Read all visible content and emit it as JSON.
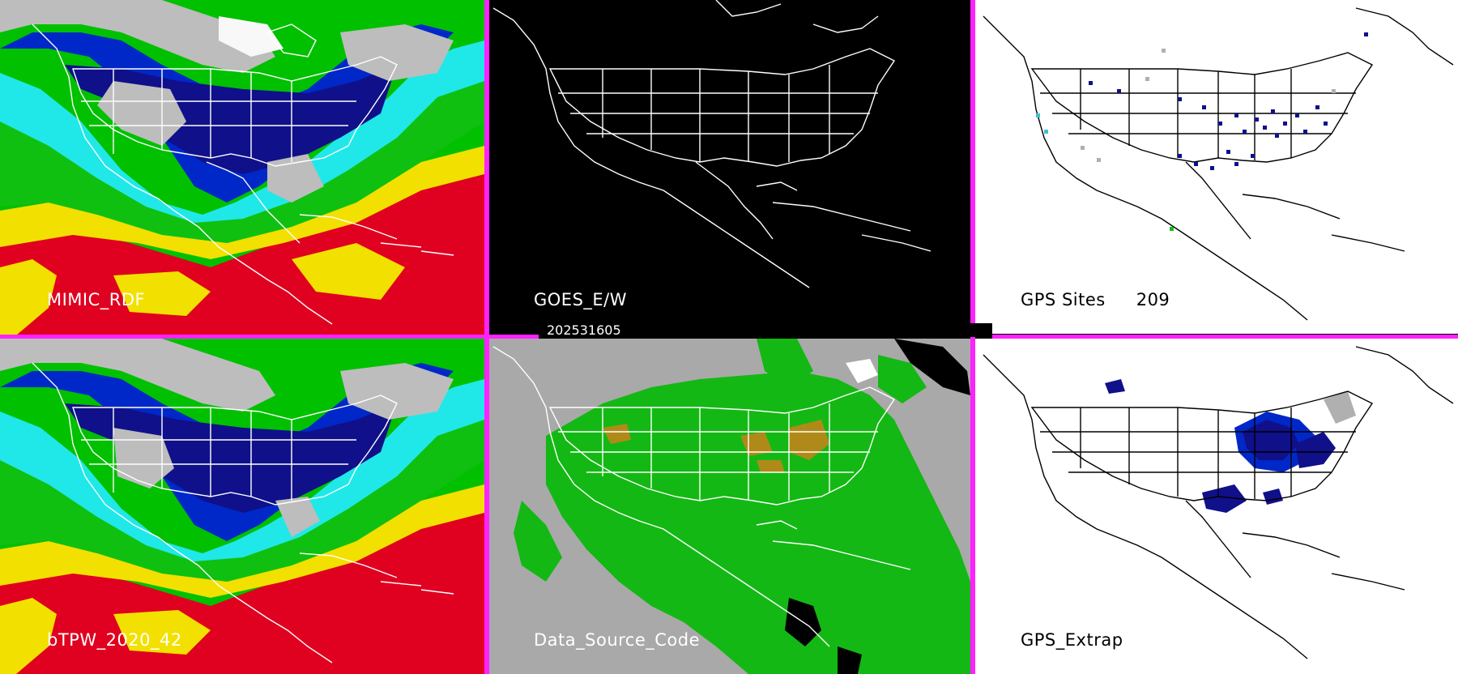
{
  "panels": [
    {
      "label": "MIMIC_RDF",
      "bg": "#00c000",
      "style": "tpw"
    },
    {
      "label": "GOES_E/W",
      "bg": "#000000",
      "style": "dark"
    },
    {
      "label": "GPS Sites",
      "count": "209",
      "bg": "#ffffff",
      "style": "white"
    },
    {
      "label": "bTPW_2020_42",
      "bg": "#00c000",
      "style": "tpw"
    },
    {
      "label": "Data_Source_Code",
      "bg": "#a9a9a9",
      "style": "source"
    },
    {
      "label": "GPS_Extrap",
      "bg": "#ffffff",
      "style": "white"
    }
  ],
  "timestamp": "202531605",
  "colors": {
    "separator": "#ff22ff",
    "tpw_red": "#e00020",
    "tpw_yellow": "#f2e000",
    "tpw_green": "#10c010",
    "tpw_cyan": "#20e8e8",
    "tpw_blue": "#0028c8",
    "tpw_navy": "#10108a",
    "tpw_gray": "#bdbdbd",
    "source_green": "#14b814",
    "source_olive": "#b08a18",
    "gps_site_navy": "#10108a",
    "gps_site_cyan": "#40c0d0",
    "gps_site_gray": "#b0b0b0"
  }
}
